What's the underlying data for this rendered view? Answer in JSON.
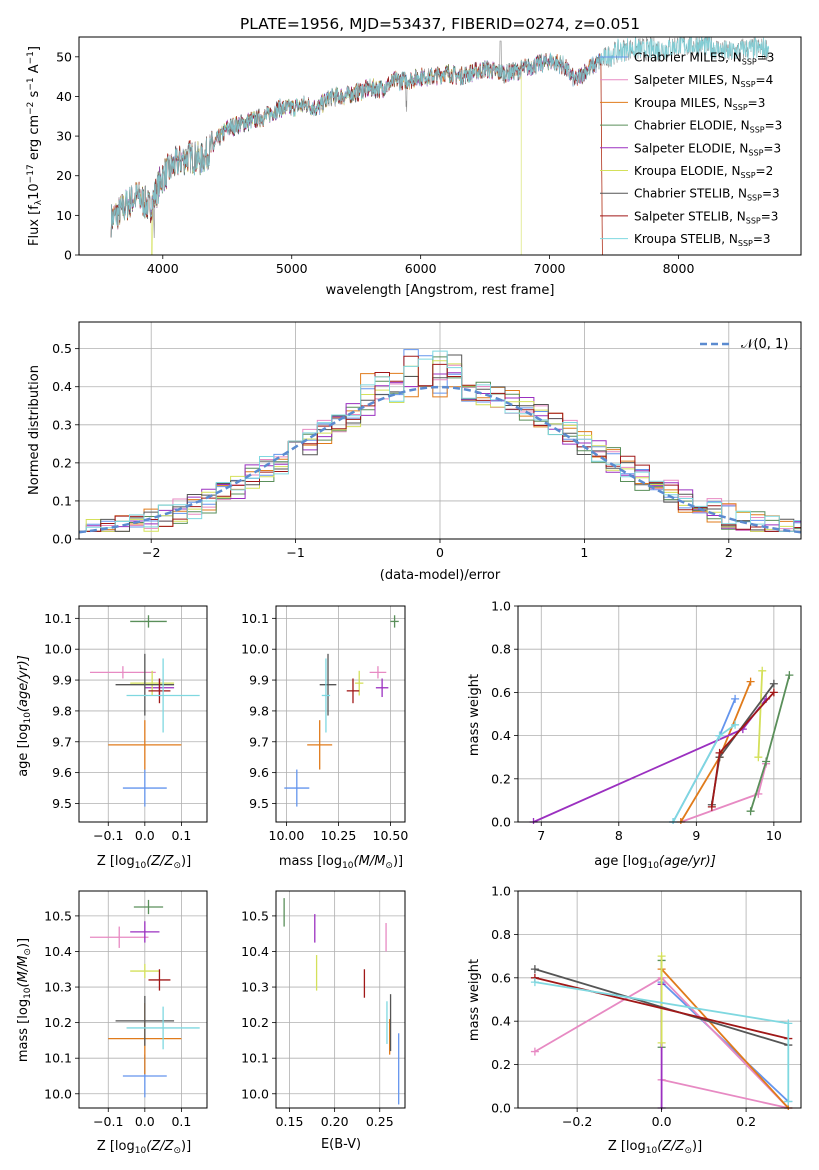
{
  "figure_title": "PLATE=1956, MJD=53437, FIBERID=0274, z=0.051",
  "models": [
    {
      "name": "Chabrier MILES, N",
      "nssp": "3",
      "color": "#6495ED"
    },
    {
      "name": "Salpeter MILES, N",
      "nssp": "4",
      "color": "#E78AC3"
    },
    {
      "name": "Kroupa MILES, N",
      "nssp": "3",
      "color": "#E07B1B"
    },
    {
      "name": "Chabrier ELODIE, N",
      "nssp": "3",
      "color": "#5A8F5A"
    },
    {
      "name": "Salpeter ELODIE, N",
      "nssp": "3",
      "color": "#9B30C0"
    },
    {
      "name": "Kroupa ELODIE, N",
      "nssp": "2",
      "color": "#D4E05A"
    },
    {
      "name": "Chabrier STELIB, N",
      "nssp": "3",
      "color": "#555555"
    },
    {
      "name": "Salpeter STELIB, N",
      "nssp": "3",
      "color": "#A01818"
    },
    {
      "name": "Kroupa STELIB, N",
      "nssp": "3",
      "color": "#7FD8E0"
    }
  ],
  "chart_data": [
    {
      "type": "line",
      "ylabel_main": "Flux [f",
      "ylabel_sub": "λ",
      "ylabel_rest": "10",
      "ylabel_exp": "−17",
      "ylabel_units": " erg cm",
      "ylabel_exp2": "−2",
      "ylabel_s": " s",
      "ylabel_exp3": "−1",
      "ylabel_end": " A",
      "ylabel_exp4": "−1",
      "ylabel_close": "]",
      "xlabel": "wavelength [Angstrom, rest frame]",
      "xlim": [
        3350,
        8950
      ],
      "ylim": [
        0,
        55
      ],
      "xticks": [
        "4000",
        "5000",
        "6000",
        "7000",
        "8000"
      ],
      "yticks": [
        "0",
        "10",
        "20",
        "30",
        "40",
        "50"
      ],
      "xtickvals": [
        4000,
        5000,
        6000,
        7000,
        8000
      ],
      "ytickvals": [
        0,
        10,
        20,
        30,
        40,
        50
      ],
      "continuum": [
        [
          3600,
          9
        ],
        [
          3700,
          12
        ],
        [
          3800,
          15
        ],
        [
          3900,
          12
        ],
        [
          3950,
          16
        ],
        [
          4000,
          20
        ],
        [
          4100,
          23
        ],
        [
          4200,
          25
        ],
        [
          4300,
          24
        ],
        [
          4400,
          28
        ],
        [
          4500,
          32
        ],
        [
          4600,
          33
        ],
        [
          4700,
          34
        ],
        [
          4800,
          35
        ],
        [
          4900,
          37
        ],
        [
          5000,
          37
        ],
        [
          5100,
          38
        ],
        [
          5200,
          37
        ],
        [
          5300,
          40
        ],
        [
          5400,
          40
        ],
        [
          5500,
          41
        ],
        [
          5600,
          42
        ],
        [
          5700,
          42
        ],
        [
          5800,
          44
        ],
        [
          5900,
          44
        ],
        [
          6000,
          45
        ],
        [
          6100,
          45
        ],
        [
          6200,
          46
        ],
        [
          6300,
          45
        ],
        [
          6400,
          46
        ],
        [
          6500,
          47
        ],
        [
          6600,
          46
        ],
        [
          6700,
          46
        ],
        [
          6800,
          47
        ],
        [
          6900,
          48
        ],
        [
          7000,
          49
        ],
        [
          7100,
          48
        ],
        [
          7200,
          44
        ],
        [
          7300,
          47
        ],
        [
          7400,
          49
        ],
        [
          7500,
          51
        ],
        [
          7600,
          52
        ],
        [
          7700,
          52
        ],
        [
          7800,
          52
        ],
        [
          7900,
          52
        ],
        [
          8000,
          53
        ],
        [
          8100,
          53
        ],
        [
          8200,
          53
        ],
        [
          8300,
          52
        ],
        [
          8400,
          51
        ],
        [
          8500,
          52
        ],
        [
          8600,
          52
        ],
        [
          8700,
          52
        ]
      ],
      "notes": "dense absorption-line spectrum"
    },
    {
      "type": "histogram",
      "xlabel": "(data-model)/error",
      "ylabel": "Normed distribution",
      "xlim": [
        -2.5,
        2.5
      ],
      "ylim": [
        0,
        0.57
      ],
      "xticks": [
        "−2",
        "−1",
        "0",
        "1",
        "2"
      ],
      "yticks": [
        "0.0",
        "0.1",
        "0.2",
        "0.3",
        "0.4",
        "0.5"
      ],
      "xtickvals": [
        -2,
        -1,
        0,
        1,
        2
      ],
      "ytickvals": [
        0,
        0.1,
        0.2,
        0.3,
        0.4,
        0.5
      ],
      "legend": "𝒩(0, 1)",
      "bin_width": 0.1
    },
    {
      "type": "scatter",
      "xlabel": "Z [log",
      "xlabel_sub": "10",
      "xlabel_rest": "(Z/Z",
      "xlabel_sub2": "⊙",
      "xlabel_end": ")]",
      "ylabel": "age  [log",
      "ylabel_sub": "10",
      "ylabel_rest": "(age/yr)]",
      "xlim": [
        -0.18,
        0.17
      ],
      "ylim": [
        9.44,
        10.14
      ],
      "xticks": [
        "−0.1",
        "0.0",
        "0.1"
      ],
      "yticks": [
        "9.5",
        "9.6",
        "9.7",
        "9.8",
        "9.9",
        "10.0",
        "10.1"
      ],
      "xtickvals": [
        -0.1,
        0,
        0.1
      ],
      "ytickvals": [
        9.5,
        9.6,
        9.7,
        9.8,
        9.9,
        10.0,
        10.1
      ],
      "points": [
        {
          "m": 0,
          "x": 0.0,
          "xe": 0.06,
          "y": 9.55,
          "ye": 0.06
        },
        {
          "m": 1,
          "x": -0.06,
          "xe": 0.09,
          "y": 9.925,
          "ye": 0.02
        },
        {
          "m": 2,
          "x": 0.0,
          "xe": 0.1,
          "y": 9.69,
          "ye": 0.08
        },
        {
          "m": 3,
          "x": 0.01,
          "xe": 0.05,
          "y": 10.09,
          "ye": 0.02
        },
        {
          "m": 4,
          "x": 0.04,
          "xe": 0.04,
          "y": 9.875,
          "ye": 0.03
        },
        {
          "m": 5,
          "x": 0.02,
          "xe": 0.06,
          "y": 9.89,
          "ye": 0.04
        },
        {
          "m": 6,
          "x": 0.0,
          "xe": 0.08,
          "y": 9.885,
          "ye": 0.1
        },
        {
          "m": 7,
          "x": 0.04,
          "xe": 0.03,
          "y": 9.865,
          "ye": 0.04
        },
        {
          "m": 8,
          "x": 0.05,
          "xe": 0.1,
          "y": 9.85,
          "ye": 0.12
        }
      ]
    },
    {
      "type": "scatter",
      "xlabel": "mass [log",
      "xlabel_sub": "10",
      "xlabel_rest": "(M/M",
      "xlabel_sub2": "⊙",
      "xlabel_end": ")]",
      "xlim": [
        9.95,
        10.57
      ],
      "ylim": [
        9.44,
        10.14
      ],
      "xticks": [
        "10.00",
        "10.25",
        "10.50"
      ],
      "yticks": [
        "9.5",
        "9.6",
        "9.7",
        "9.8",
        "9.9",
        "10.0",
        "10.1"
      ],
      "xtickvals": [
        10.0,
        10.25,
        10.5
      ],
      "ytickvals": [
        9.5,
        9.6,
        9.7,
        9.8,
        9.9,
        10.0,
        10.1
      ],
      "points": [
        {
          "m": 0,
          "x": 10.05,
          "xe": 0.06,
          "y": 9.55,
          "ye": 0.06
        },
        {
          "m": 1,
          "x": 10.44,
          "xe": 0.04,
          "y": 9.925,
          "ye": 0.02
        },
        {
          "m": 2,
          "x": 10.16,
          "xe": 0.06,
          "y": 9.69,
          "ye": 0.08
        },
        {
          "m": 3,
          "x": 10.52,
          "xe": 0.02,
          "y": 10.09,
          "ye": 0.02
        },
        {
          "m": 4,
          "x": 10.46,
          "xe": 0.03,
          "y": 9.875,
          "ye": 0.03
        },
        {
          "m": 5,
          "x": 10.35,
          "xe": 0.02,
          "y": 9.89,
          "ye": 0.04
        },
        {
          "m": 6,
          "x": 10.2,
          "xe": 0.04,
          "y": 9.885,
          "ye": 0.1
        },
        {
          "m": 7,
          "x": 10.32,
          "xe": 0.03,
          "y": 9.865,
          "ye": 0.04
        },
        {
          "m": 8,
          "x": 10.19,
          "xe": 0.02,
          "y": 9.85,
          "ye": 0.12
        }
      ]
    },
    {
      "type": "line",
      "xlabel": "age  [log",
      "xlabel_sub": "10",
      "xlabel_rest": "(age/yr)]",
      "ylabel": "mass weight",
      "xlim": [
        6.7,
        10.35
      ],
      "ylim": [
        0,
        1
      ],
      "xticks": [
        "7",
        "8",
        "9",
        "10"
      ],
      "yticks": [
        "0.0",
        "0.2",
        "0.4",
        "0.6",
        "0.8",
        "1.0"
      ],
      "xtickvals": [
        7,
        8,
        9,
        10
      ],
      "ytickvals": [
        0,
        0.2,
        0.4,
        0.6,
        0.8,
        1.0
      ],
      "series": [
        {
          "m": 0,
          "pts": [
            [
              8.7,
              0.0
            ],
            [
              9.3,
              0.4
            ],
            [
              9.5,
              0.57
            ]
          ]
        },
        {
          "m": 1,
          "pts": [
            [
              8.8,
              0.0
            ],
            [
              9.8,
              0.13
            ],
            [
              9.9,
              0.27
            ]
          ]
        },
        {
          "m": 2,
          "pts": [
            [
              8.8,
              0.0
            ],
            [
              9.3,
              0.3
            ],
            [
              9.7,
              0.65
            ]
          ]
        },
        {
          "m": 3,
          "pts": [
            [
              9.7,
              0.05
            ],
            [
              9.9,
              0.28
            ],
            [
              10.2,
              0.68
            ]
          ]
        },
        {
          "m": 4,
          "pts": [
            [
              6.9,
              0.0
            ],
            [
              9.6,
              0.43
            ],
            [
              9.9,
              0.57
            ]
          ]
        },
        {
          "m": 5,
          "pts": [
            [
              9.8,
              0.3
            ],
            [
              9.85,
              0.7
            ]
          ]
        },
        {
          "m": 6,
          "pts": [
            [
              9.2,
              0.08
            ],
            [
              9.3,
              0.3
            ],
            [
              10.0,
              0.64
            ]
          ]
        },
        {
          "m": 7,
          "pts": [
            [
              9.2,
              0.07
            ],
            [
              9.3,
              0.32
            ],
            [
              10.0,
              0.6
            ]
          ]
        },
        {
          "m": 8,
          "pts": [
            [
              8.7,
              0.0
            ],
            [
              9.3,
              0.4
            ],
            [
              9.5,
              0.45
            ]
          ]
        }
      ]
    },
    {
      "type": "scatter",
      "xlabel": "Z [log",
      "xlabel_sub": "10",
      "xlabel_rest": "(Z/Z",
      "xlabel_sub2": "⊙",
      "xlabel_end": ")]",
      "ylabel": "mass [log",
      "ylabel_sub": "10",
      "ylabel_rest": "(M/M",
      "ylabel_sub2": "⊙",
      "ylabel_end": ")]",
      "xlim": [
        -0.18,
        0.17
      ],
      "ylim": [
        9.96,
        10.57
      ],
      "xticks": [
        "−0.1",
        "0.0",
        "0.1"
      ],
      "yticks": [
        "10.0",
        "10.1",
        "10.2",
        "10.3",
        "10.4",
        "10.5"
      ],
      "xtickvals": [
        -0.1,
        0,
        0.1
      ],
      "ytickvals": [
        10.0,
        10.1,
        10.2,
        10.3,
        10.4,
        10.5
      ],
      "points": [
        {
          "m": 0,
          "x": 0.0,
          "xe": 0.06,
          "y": 10.05,
          "ye": 0.06
        },
        {
          "m": 1,
          "x": -0.07,
          "xe": 0.08,
          "y": 10.44,
          "ye": 0.03
        },
        {
          "m": 2,
          "x": 0.0,
          "xe": 0.1,
          "y": 10.155,
          "ye": 0.1
        },
        {
          "m": 3,
          "x": 0.01,
          "xe": 0.04,
          "y": 10.525,
          "ye": 0.02
        },
        {
          "m": 4,
          "x": 0.0,
          "xe": 0.04,
          "y": 10.455,
          "ye": 0.03
        },
        {
          "m": 5,
          "x": 0.0,
          "xe": 0.04,
          "y": 10.345,
          "ye": 0.02
        },
        {
          "m": 6,
          "x": 0.0,
          "xe": 0.08,
          "y": 10.205,
          "ye": 0.07
        },
        {
          "m": 7,
          "x": 0.04,
          "xe": 0.03,
          "y": 10.32,
          "ye": 0.03
        },
        {
          "m": 8,
          "x": 0.05,
          "xe": 0.1,
          "y": 10.185,
          "ye": 0.06
        }
      ]
    },
    {
      "type": "scatter",
      "xlabel": "E(B-V)",
      "xlim": [
        0.135,
        0.278
      ],
      "ylim": [
        9.96,
        10.57
      ],
      "xticks": [
        "0.15",
        "0.20",
        "0.25"
      ],
      "yticks": [
        "10.0",
        "10.1",
        "10.2",
        "10.3",
        "10.4",
        "10.5"
      ],
      "xtickvals": [
        0.15,
        0.2,
        0.25
      ],
      "ytickvals": [
        10.0,
        10.1,
        10.2,
        10.3,
        10.4,
        10.5
      ],
      "points": [
        {
          "m": 0,
          "x": 0.271,
          "y": 10.07,
          "ye": 0.1
        },
        {
          "m": 1,
          "x": 0.257,
          "y": 10.44,
          "ye": 0.04
        },
        {
          "m": 2,
          "x": 0.261,
          "y": 10.16,
          "ye": 0.05
        },
        {
          "m": 3,
          "x": 0.144,
          "y": 10.51,
          "ye": 0.04
        },
        {
          "m": 4,
          "x": 0.178,
          "y": 10.465,
          "ye": 0.04
        },
        {
          "m": 5,
          "x": 0.18,
          "y": 10.34,
          "ye": 0.05
        },
        {
          "m": 6,
          "x": 0.262,
          "y": 10.2,
          "ye": 0.08
        },
        {
          "m": 7,
          "x": 0.233,
          "y": 10.31,
          "ye": 0.04
        },
        {
          "m": 8,
          "x": 0.258,
          "y": 10.2,
          "ye": 0.06
        }
      ]
    },
    {
      "type": "line",
      "xlabel": "Z [log",
      "xlabel_sub": "10",
      "xlabel_rest": "(Z/Z",
      "xlabel_sub2": "⊙",
      "xlabel_end": ")]",
      "ylabel": "mass weight",
      "xlim": [
        -0.34,
        0.33
      ],
      "ylim": [
        0,
        1
      ],
      "xticks": [
        "−0.2",
        "0.0",
        "0.2"
      ],
      "yticks": [
        "0.0",
        "0.2",
        "0.4",
        "0.6",
        "0.8",
        "1.0"
      ],
      "xtickvals": [
        -0.2,
        0,
        0.2
      ],
      "ytickvals": [
        0,
        0.2,
        0.4,
        0.6,
        0.8,
        1.0
      ],
      "series": [
        {
          "m": 0,
          "pts": [
            [
              0.0,
              0.58
            ],
            [
              0.3,
              0.03
            ]
          ]
        },
        {
          "m": 1,
          "pts": [
            [
              -0.3,
              0.26
            ],
            [
              0.0,
              0.6
            ],
            [
              0.3,
              0.0
            ]
          ]
        },
        {
          "m": 1,
          "pts": [
            [
              0.0,
              0.13
            ],
            [
              0.3,
              0.0
            ]
          ]
        },
        {
          "m": 2,
          "pts": [
            [
              0.0,
              0.64
            ],
            [
              0.3,
              0.0
            ]
          ]
        },
        {
          "m": 3,
          "pts": [
            [
              0.0,
              0.28
            ],
            [
              0.0,
              0.68
            ]
          ]
        },
        {
          "m": 4,
          "pts": [
            [
              0.0,
              0.0
            ],
            [
              0.0,
              0.57
            ]
          ]
        },
        {
          "m": 5,
          "pts": [
            [
              0.0,
              0.3
            ],
            [
              0.0,
              0.7
            ]
          ]
        },
        {
          "m": 6,
          "pts": [
            [
              -0.3,
              0.64
            ],
            [
              0.3,
              0.29
            ]
          ]
        },
        {
          "m": 7,
          "pts": [
            [
              -0.3,
              0.6
            ],
            [
              0.3,
              0.32
            ]
          ]
        },
        {
          "m": 8,
          "pts": [
            [
              -0.3,
              0.58
            ],
            [
              0.3,
              0.39
            ],
            [
              0.3,
              0.03
            ]
          ]
        }
      ]
    }
  ]
}
